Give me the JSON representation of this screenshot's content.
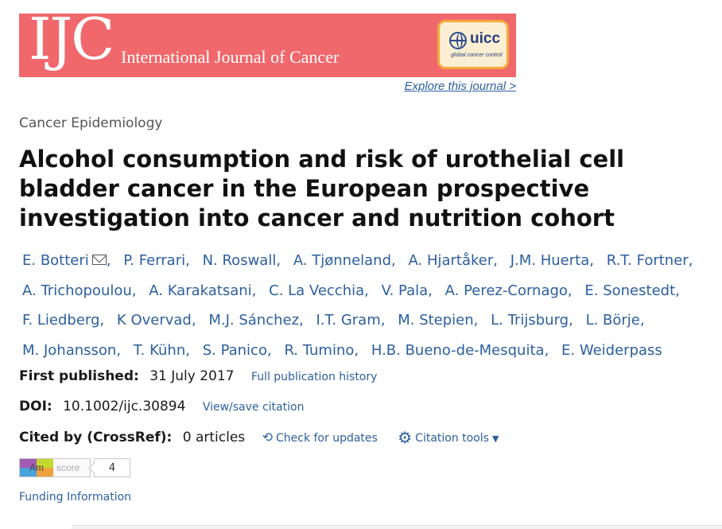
{
  "banner": {
    "logo_text": "IJC",
    "journal_name": "International Journal of Cancer",
    "badge_text": "uicc",
    "badge_tagline": "global cancer control",
    "bg_color": "#f0686c"
  },
  "explore_link": "Explore this journal >",
  "section_label": "Cancer Epidemiology",
  "title": "Alcohol consumption and risk of urothelial cell bladder cancer in the European prospective investigation into cancer and nutrition cohort",
  "authors": [
    "E. Botteri",
    "P. Ferrari",
    "N. Roswall",
    "A. Tjønneland",
    "A. Hjartåker",
    "J.M. Huerta",
    "R.T. Fortner",
    "A. Trichopoulou",
    "A. Karakatsani",
    "C. La Vecchia",
    "V. Pala",
    "A. Perez-Cornago",
    "E. Sonestedt",
    "F. Liedberg",
    "K Overvad",
    "M.J. Sánchez",
    "I.T. Gram",
    "M. Stepien",
    "L. Trijsburg",
    "L. Börje",
    "M. Johansson",
    "T. Kühn",
    "S. Panico",
    "R. Tumino",
    "H.B. Bueno-de-Mesquita",
    "E. Weiderpass"
  ],
  "meta": {
    "published_label": "First published:",
    "published_value": "31 July 2017",
    "history_link": "Full publication history",
    "doi_label": "DOI:",
    "doi_value": "10.1002/ijc.30894",
    "citation_link": "View/save citation",
    "cited_label": "Cited by (CrossRef):",
    "cited_value": "0 articles",
    "check_updates": "Check for updates",
    "citation_tools": "Citation tools"
  },
  "altmetric": {
    "logo_text": "Am",
    "score_label": "score",
    "score_value": "4"
  },
  "funding_link": "Funding Information",
  "colors": {
    "link": "#2b5f9e",
    "banner": "#f0686c",
    "badge_border": "#f6a93b"
  }
}
